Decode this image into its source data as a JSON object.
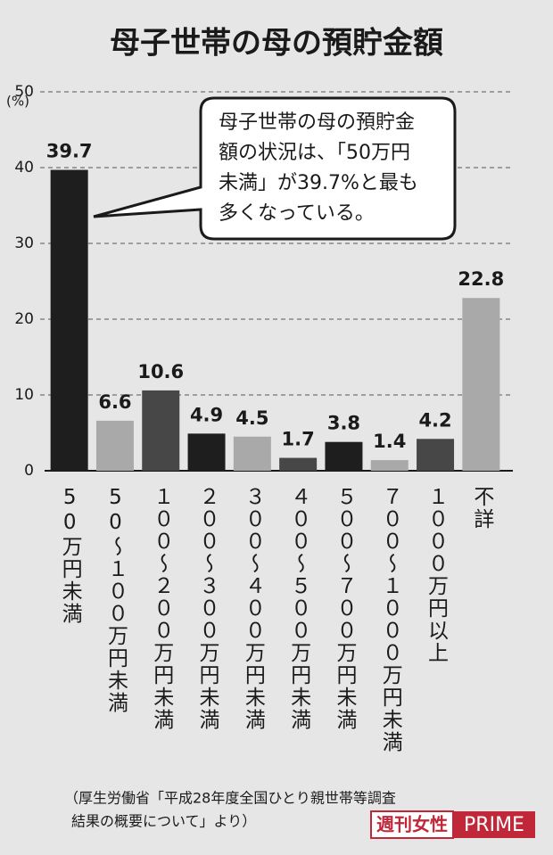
{
  "chart_data": {
    "type": "bar",
    "title": "母子世帯の母の預貯金額",
    "y_unit": "(%)",
    "categories": [
      "50万円未満",
      "50〜１００万円未満",
      "１００〜２００万円未満",
      "２００〜３００万円未満",
      "３００〜４００万円未満",
      "４００〜５００万円未満",
      "５００〜７００万円未満",
      "７００〜１０００万円未満",
      "１０００万円以上",
      "不詳"
    ],
    "values": [
      39.7,
      6.6,
      10.6,
      4.9,
      4.5,
      1.7,
      3.8,
      1.4,
      4.2,
      22.8
    ],
    "colors": [
      "#1e1e1e",
      "#a9a9a9",
      "#474747",
      "#1e1e1e",
      "#a9a9a9",
      "#474747",
      "#1e1e1e",
      "#a9a9a9",
      "#474747",
      "#a9a9a9"
    ],
    "ylim": [
      0,
      50
    ],
    "yticks": [
      0,
      10,
      20,
      30,
      40,
      50
    ],
    "grid": true,
    "annotation": [
      "母子世帯の母の預貯金",
      "額の状況は、「50万円",
      "未満」が39.7%と最も",
      "多くなっている。"
    ],
    "source": [
      "（厚生労働省「平成28年度全国ひとり親世帯等調査",
      "結果の概要について」より）"
    ],
    "logo": [
      "週刊女性",
      "PRIME"
    ]
  }
}
